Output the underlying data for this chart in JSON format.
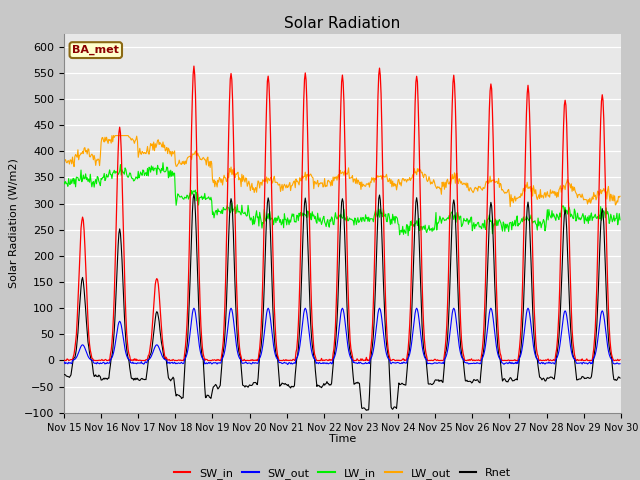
{
  "title": "Solar Radiation",
  "ylabel": "Solar Radiation (W/m2)",
  "xlabel": "Time",
  "ylim": [
    -100,
    625
  ],
  "yticks": [
    -100,
    -50,
    0,
    50,
    100,
    150,
    200,
    250,
    300,
    350,
    400,
    450,
    500,
    550,
    600
  ],
  "xtick_labels": [
    "Nov 15",
    "Nov 16",
    "Nov 17",
    "Nov 18",
    "Nov 19",
    "Nov 20",
    "Nov 21",
    "Nov 22",
    "Nov 23",
    "Nov 24",
    "Nov 25",
    "Nov 26",
    "Nov 27",
    "Nov 28",
    "Nov 29",
    "Nov 30"
  ],
  "colors": {
    "SW_in": "#ff0000",
    "SW_out": "#0000ff",
    "LW_in": "#00ee00",
    "LW_out": "#ffa500",
    "Rnet": "#000000"
  },
  "legend_label": "BA_met",
  "fig_facecolor": "#c8c8c8",
  "ax_facecolor": "#e8e8e8",
  "num_days": 15,
  "SW_in_peaks": [
    275,
    445,
    160,
    560,
    550,
    545,
    550,
    545,
    560,
    545,
    545,
    530,
    525,
    500,
    510
  ],
  "SW_out_peaks": [
    30,
    75,
    30,
    100,
    100,
    100,
    100,
    100,
    100,
    100,
    100,
    100,
    100,
    95,
    95
  ],
  "LW_in_day_values": [
    340,
    350,
    360,
    310,
    280,
    265,
    270,
    265,
    270,
    250,
    265,
    255,
    260,
    275,
    270
  ],
  "LW_out_day_values": [
    380,
    420,
    395,
    375,
    340,
    330,
    335,
    340,
    335,
    340,
    330,
    325,
    310,
    315,
    305
  ],
  "Rnet_night_values": [
    -30,
    -35,
    -35,
    -70,
    -50,
    -45,
    -50,
    -45,
    -90,
    -45,
    -40,
    -40,
    -35,
    -35,
    -35
  ]
}
